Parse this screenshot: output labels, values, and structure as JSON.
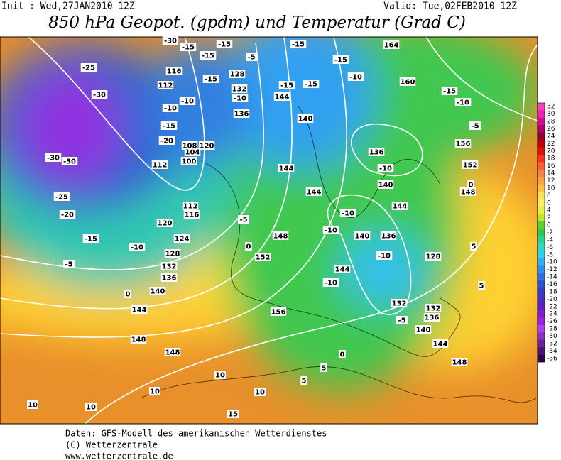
{
  "header": {
    "init": "Init : Wed,27JAN2010 12Z",
    "valid": "Valid: Tue,02FEB2010 12Z",
    "title": "850 hPa Geopot. (gpdm) und Temperatur (Grad C)"
  },
  "colorbar": {
    "labels": [
      "32",
      "30",
      "28",
      "26",
      "24",
      "22",
      "20",
      "18",
      "16",
      "14",
      "12",
      "10",
      "8",
      "6",
      "4",
      "2",
      "0",
      "-2",
      "-4",
      "-6",
      "-8",
      "-10",
      "-12",
      "-14",
      "-16",
      "-18",
      "-20",
      "-22",
      "-24",
      "-26",
      "-28",
      "-30",
      "-32",
      "-34",
      "-36"
    ],
    "colors": [
      "#ff40c0",
      "#f020b0",
      "#d01090",
      "#b00070",
      "#900030",
      "#c00000",
      "#e01010",
      "#ff3020",
      "#ff6030",
      "#ff8040",
      "#ffa040",
      "#ffc040",
      "#ffe050",
      "#fff060",
      "#e8f040",
      "#c0e830",
      "#60d030",
      "#30c850",
      "#30d090",
      "#30d8c0",
      "#30d0f0",
      "#30b0f0",
      "#3090f0",
      "#3070e0",
      "#3050d0",
      "#3040c0",
      "#5030c0",
      "#6020c0",
      "#8020d0",
      "#a020e0",
      "#b040f0",
      "#9030c0",
      "#702090",
      "#501070",
      "#300050"
    ]
  },
  "map": {
    "labels": [
      "-30",
      "-25",
      "-30",
      "-30",
      "-30",
      "-25",
      "-20",
      "-15",
      "-10",
      "-5",
      "0",
      "148",
      "-15",
      "116",
      "112",
      "-10",
      "-15",
      "-20",
      "112",
      "108",
      "104",
      "100",
      "120",
      "116",
      "112",
      "120",
      "124",
      "128",
      "132",
      "136",
      "140",
      "144",
      "148",
      "10",
      "10",
      "10",
      "10",
      "15",
      "10",
      "5",
      "0",
      "5",
      "156",
      "152",
      "148",
      "144",
      "144",
      "140",
      "144",
      "136",
      "-10",
      "140",
      "144",
      "-10",
      "-10",
      "140",
      "136",
      "-10",
      "128",
      "144",
      "-10",
      "132",
      "132",
      "136",
      "140",
      "144",
      "148",
      "-5",
      "5",
      "5",
      "0",
      "148",
      "152",
      "156",
      "-5",
      "-10",
      "-15",
      "160",
      "164",
      "-15",
      "-15",
      "-10",
      "-15",
      "-15",
      "-5",
      "128",
      "132",
      "136",
      "-15",
      "-15",
      "-15",
      "-10",
      "-5",
      "0",
      "-10"
    ]
  },
  "footer": {
    "lines": [
      "Daten: GFS-Modell des amerikanischen Wetterdienstes",
      "(C) Wetterzentrale",
      "www.wetterzentrale.de"
    ]
  }
}
